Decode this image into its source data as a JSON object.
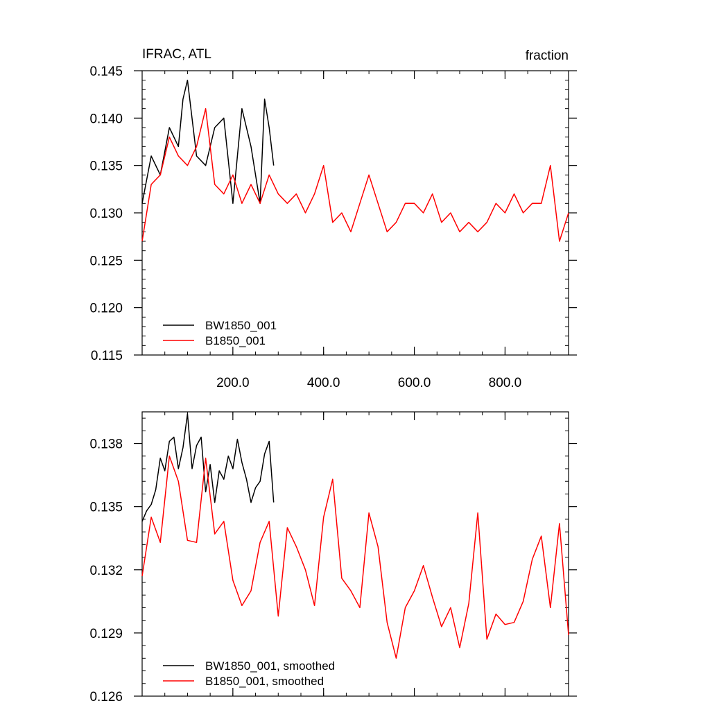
{
  "chart_data": [
    {
      "type": "line",
      "title_left": "IFRAC, ATL",
      "title_right": "fraction",
      "xlim": [
        0,
        940
      ],
      "ylim": [
        0.115,
        0.145
      ],
      "x_ticks": [
        200,
        400,
        600,
        800
      ],
      "x_tick_labels": [
        "200.0",
        "400.0",
        "600.0",
        "800.0"
      ],
      "y_ticks": [
        0.115,
        0.12,
        0.125,
        0.13,
        0.135,
        0.14,
        0.145
      ],
      "y_tick_labels": [
        "0.115",
        "0.120",
        "0.125",
        "0.130",
        "0.135",
        "0.140",
        "0.145"
      ],
      "legend_position": "bottom-left",
      "grid": false,
      "series": [
        {
          "name": "BW1850_001",
          "color": "#000000",
          "x": [
            0,
            20,
            40,
            60,
            80,
            90,
            100,
            120,
            140,
            160,
            180,
            200,
            220,
            240,
            260,
            270,
            280,
            290
          ],
          "y": [
            0.131,
            0.136,
            0.134,
            0.139,
            0.137,
            0.142,
            0.144,
            0.136,
            0.135,
            0.139,
            0.14,
            0.131,
            0.141,
            0.137,
            0.131,
            0.142,
            0.139,
            0.135
          ]
        },
        {
          "name": "B1850_001",
          "color": "#ff0000",
          "x": [
            0,
            20,
            40,
            60,
            80,
            100,
            120,
            140,
            160,
            180,
            200,
            220,
            240,
            260,
            280,
            300,
            320,
            340,
            360,
            380,
            400,
            420,
            440,
            460,
            480,
            500,
            520,
            540,
            560,
            580,
            600,
            620,
            640,
            660,
            680,
            700,
            720,
            740,
            760,
            780,
            800,
            820,
            840,
            860,
            880,
            900,
            920,
            940
          ],
          "y": [
            0.127,
            0.133,
            0.134,
            0.138,
            0.136,
            0.135,
            0.137,
            0.141,
            0.133,
            0.132,
            0.134,
            0.131,
            0.133,
            0.131,
            0.134,
            0.132,
            0.131,
            0.132,
            0.13,
            0.132,
            0.135,
            0.129,
            0.13,
            0.128,
            0.131,
            0.134,
            0.131,
            0.128,
            0.129,
            0.131,
            0.131,
            0.13,
            0.132,
            0.129,
            0.13,
            0.128,
            0.129,
            0.128,
            0.129,
            0.131,
            0.13,
            0.132,
            0.13,
            0.131,
            0.131,
            0.135,
            0.127,
            0.13
          ]
        }
      ]
    },
    {
      "type": "line",
      "xlim": [
        0,
        940
      ],
      "ylim": [
        0.126,
        0.1395
      ],
      "x_ticks": [
        200,
        400,
        600,
        800
      ],
      "y_ticks": [
        0.126,
        0.129,
        0.132,
        0.135,
        0.138
      ],
      "y_tick_labels": [
        "0.126",
        "0.129",
        "0.132",
        "0.135",
        "0.138"
      ],
      "legend_position": "bottom-left",
      "grid": false,
      "series": [
        {
          "name": "BW1850_001, smoothed",
          "color": "#000000",
          "x": [
            0,
            10,
            20,
            30,
            40,
            50,
            60,
            70,
            80,
            90,
            100,
            110,
            120,
            130,
            140,
            150,
            160,
            170,
            180,
            190,
            200,
            210,
            220,
            230,
            240,
            250,
            260,
            270,
            280,
            290
          ],
          "y": [
            0.1343,
            0.1348,
            0.1351,
            0.1358,
            0.1373,
            0.1367,
            0.1381,
            0.1383,
            0.1368,
            0.1378,
            0.1394,
            0.1368,
            0.1379,
            0.1383,
            0.1357,
            0.137,
            0.1352,
            0.1367,
            0.1363,
            0.1374,
            0.1368,
            0.1382,
            0.1371,
            0.1363,
            0.1352,
            0.1359,
            0.1362,
            0.1375,
            0.1381,
            0.1352
          ]
        },
        {
          "name": "B1850_001, smoothed",
          "color": "#ff0000",
          "x": [
            0,
            20,
            40,
            60,
            80,
            100,
            120,
            140,
            160,
            180,
            200,
            220,
            240,
            260,
            280,
            300,
            320,
            340,
            360,
            380,
            400,
            420,
            440,
            460,
            480,
            500,
            520,
            540,
            560,
            580,
            600,
            620,
            640,
            660,
            680,
            700,
            720,
            740,
            760,
            780,
            800,
            820,
            840,
            860,
            880,
            900,
            920,
            940
          ],
          "y": [
            0.1317,
            0.1345,
            0.1333,
            0.1374,
            0.1362,
            0.1334,
            0.1333,
            0.1373,
            0.1337,
            0.1343,
            0.1315,
            0.1303,
            0.131,
            0.1333,
            0.1343,
            0.1298,
            0.134,
            0.1331,
            0.132,
            0.1303,
            0.1345,
            0.1363,
            0.1316,
            0.131,
            0.1302,
            0.1347,
            0.1331,
            0.1295,
            0.1278,
            0.1302,
            0.131,
            0.1322,
            0.1307,
            0.1293,
            0.1302,
            0.1283,
            0.1304,
            0.1347,
            0.1287,
            0.1299,
            0.1294,
            0.1295,
            0.1305,
            0.1325,
            0.1336,
            0.1302,
            0.1342,
            0.1289
          ]
        }
      ]
    }
  ],
  "axis_frames": [
    {
      "top_label": "IFRAC, ATL"
    },
    {
      "top_label": ""
    }
  ]
}
